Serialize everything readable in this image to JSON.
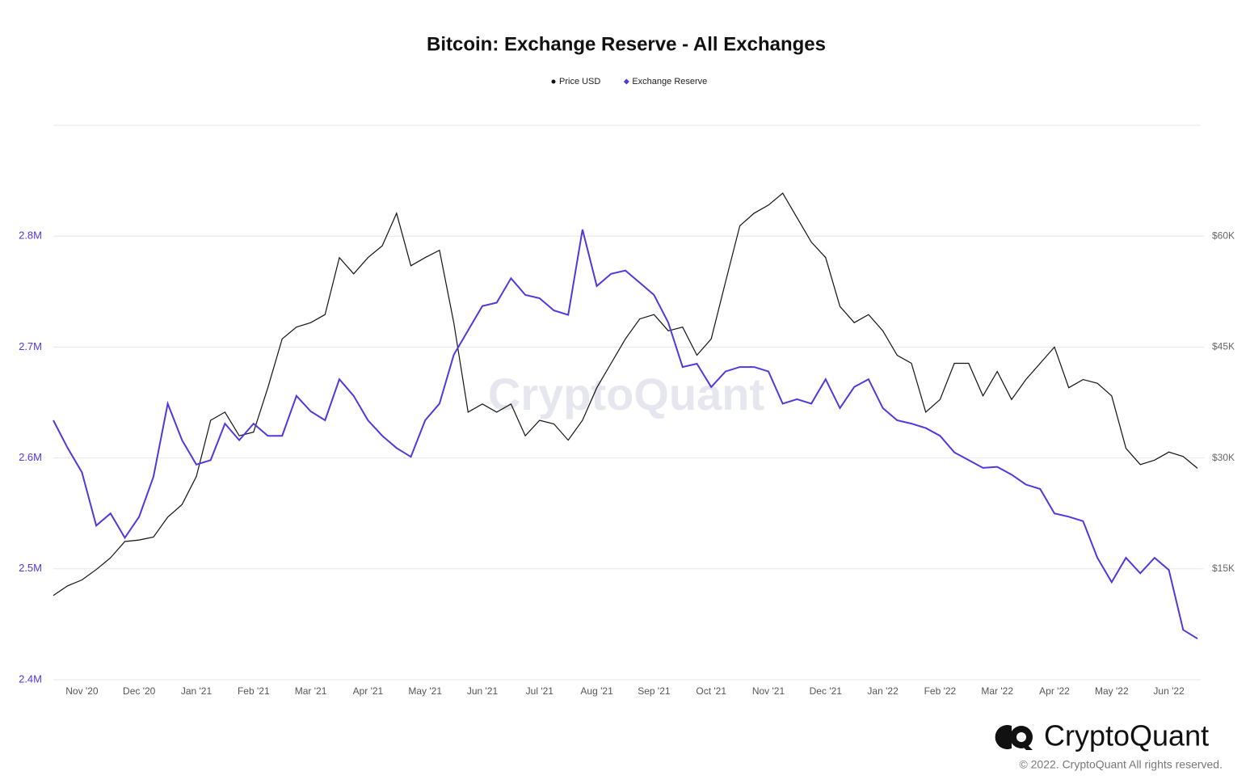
{
  "chart_data": {
    "type": "line",
    "title": "Bitcoin: Exchange Reserve - All Exchanges",
    "watermark": "CryptoQuant",
    "categories": [
      null,
      null,
      "Nov '20",
      null,
      null,
      null,
      "Dec '20",
      null,
      null,
      null,
      "Jan '21",
      null,
      null,
      null,
      "Feb '21",
      null,
      null,
      null,
      "Mar '21",
      null,
      null,
      null,
      "Apr '21",
      null,
      null,
      null,
      "May '21",
      null,
      null,
      null,
      "Jun '21",
      null,
      null,
      null,
      "Jul '21",
      null,
      null,
      null,
      "Aug '21",
      null,
      null,
      null,
      "Sep '21",
      null,
      null,
      null,
      "Oct '21",
      null,
      null,
      null,
      "Nov '21",
      null,
      null,
      null,
      "Dec '21",
      null,
      null,
      null,
      "Jan '22",
      null,
      null,
      null,
      "Feb '22",
      null,
      null,
      null,
      "Mar '22",
      null,
      null,
      null,
      "Apr '22",
      null,
      null,
      null,
      "May '22",
      null,
      null,
      null,
      "Jun '22",
      null,
      null
    ],
    "series": [
      {
        "name": "Price USD",
        "color": "#111111",
        "axis": "y2",
        "values": [
          11400,
          12700,
          13500,
          14900,
          16500,
          18700,
          18900,
          19300,
          22000,
          23700,
          27500,
          35100,
          36200,
          33000,
          33500,
          39500,
          46100,
          47700,
          48300,
          49400,
          57100,
          54900,
          57100,
          58700,
          63100,
          56000,
          57100,
          58100,
          48300,
          36200,
          37300,
          36200,
          37300,
          33000,
          35100,
          34600,
          32400,
          35100,
          39500,
          42800,
          46100,
          48800,
          49400,
          47200,
          47700,
          43900,
          46100,
          53800,
          61400,
          63100,
          64200,
          65800,
          62500,
          59200,
          57100,
          50500,
          48300,
          49400,
          47200,
          43900,
          42800,
          36200,
          37900,
          42800,
          42800,
          38400,
          41700,
          37900,
          40600,
          42800,
          45000,
          39500,
          40600,
          40100,
          38400,
          31300,
          29100,
          29700,
          30800,
          30200,
          28600
        ]
      },
      {
        "name": "Exchange Reserve",
        "color": "#5236e0",
        "values": [
          2634000,
          2609000,
          2587000,
          2539000,
          2550000,
          2528000,
          2547000,
          2583000,
          2649000,
          2616000,
          2594000,
          2598000,
          2631000,
          2616000,
          2631000,
          2620000,
          2620000,
          2656000,
          2642000,
          2634000,
          2671000,
          2656000,
          2634000,
          2620000,
          2609000,
          2601000,
          2634000,
          2649000,
          2693000,
          2715000,
          2737000,
          2740000,
          2762000,
          2747000,
          2744000,
          2733000,
          2729000,
          2806000,
          2755000,
          2766000,
          2769000,
          2758000,
          2747000,
          2722000,
          2682000,
          2685000,
          2664000,
          2678000,
          2682000,
          2682000,
          2678000,
          2649000,
          2653000,
          2649000,
          2671000,
          2645000,
          2664000,
          2671000,
          2645000,
          2634000,
          2631000,
          2627000,
          2620000,
          2605000,
          2598000,
          2591000,
          2592000,
          2585000,
          2576000,
          2572000,
          2550000,
          2547000,
          2543000,
          2510000,
          2488000,
          2510000,
          2496000,
          2510000,
          2499000,
          2445000,
          2437000
        ]
      }
    ],
    "ylim": [
      2400000,
      2900000
    ],
    "yticks": [
      {
        "value": 2400000,
        "label": "2.4M"
      },
      {
        "value": 2500000,
        "label": "2.5M"
      },
      {
        "value": 2600000,
        "label": "2.6M"
      },
      {
        "value": 2700000,
        "label": "2.7M"
      },
      {
        "value": 2800000,
        "label": "2.8M"
      }
    ],
    "y2lim": [
      0,
      75000
    ],
    "y2ticks": [
      {
        "value": 15000,
        "label": "$15K"
      },
      {
        "value": 30000,
        "label": "$30K"
      },
      {
        "value": 45000,
        "label": "$45K"
      },
      {
        "value": 60000,
        "label": "$60K"
      }
    ],
    "grid": true,
    "legend": "top"
  },
  "branding": {
    "logo": "CryptoQuant",
    "copyright": "© 2022. CryptoQuant All rights reserved."
  }
}
